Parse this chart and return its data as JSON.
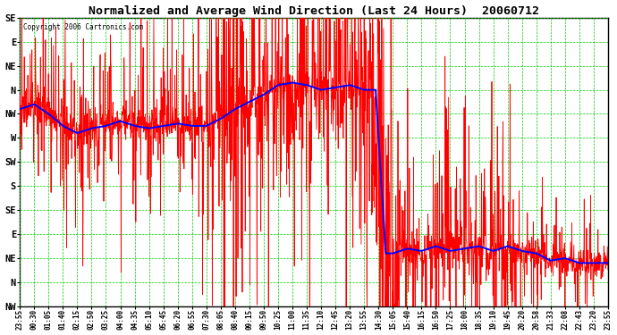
{
  "title": "Normalized and Average Wind Direction (Last 24 Hours)  20060712",
  "copyright": "Copyright 2006 Cartronics.com",
  "bg_color": "#ffffff",
  "plot_bg_color": "#ffffff",
  "grid_color": "#00cc00",
  "line_red_color": "#ff0000",
  "line_blue_color": "#0000ff",
  "border_color": "#000000",
  "ytick_labels": [
    "SE",
    "E",
    "NE",
    "N",
    "NW",
    "W",
    "SW",
    "S",
    "SE",
    "E",
    "NE",
    "N",
    "NW"
  ],
  "ytick_values": [
    0,
    1,
    2,
    3,
    4,
    5,
    6,
    7,
    8,
    9,
    10,
    11,
    12
  ],
  "xtick_labels": [
    "23:55",
    "00:30",
    "01:05",
    "01:40",
    "02:15",
    "02:50",
    "03:25",
    "04:00",
    "04:35",
    "05:10",
    "05:45",
    "06:20",
    "06:55",
    "07:30",
    "08:05",
    "08:40",
    "09:15",
    "09:50",
    "10:25",
    "11:00",
    "11:35",
    "12:10",
    "12:45",
    "13:20",
    "13:55",
    "14:30",
    "15:05",
    "15:40",
    "16:15",
    "16:50",
    "17:25",
    "18:00",
    "18:35",
    "19:10",
    "19:45",
    "20:20",
    "20:58",
    "21:33",
    "22:08",
    "22:43",
    "23:20",
    "23:55"
  ],
  "ylim": [
    0,
    12
  ],
  "n_pts": 2000,
  "seed": 7
}
